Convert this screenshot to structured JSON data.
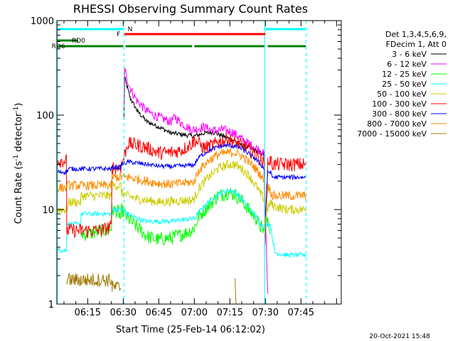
{
  "chart_data": {
    "type": "line",
    "title": "RHESSI Observing Summary Count Rates",
    "xlabel": "Start Time (25-Feb-14 06:12:02)",
    "ylabel_main": "Count Rate (s",
    "ylabel_sup1": "-1",
    "ylabel_mid": " detector",
    "ylabel_sup2": "-1",
    "ylabel_end": ")",
    "y_log": true,
    "ylim": [
      1,
      1000
    ],
    "xlim_min": [
      362,
      482
    ],
    "x_ticks": [
      {
        "m": 375,
        "label": "06:15"
      },
      {
        "m": 390,
        "label": "06:30"
      },
      {
        "m": 405,
        "label": "06:45"
      },
      {
        "m": 420,
        "label": "07:00"
      },
      {
        "m": 435,
        "label": "07:15"
      },
      {
        "m": 450,
        "label": "07:30"
      },
      {
        "m": 465,
        "label": "07:45"
      }
    ],
    "y_ticks": [
      {
        "v": 1,
        "label": "1"
      },
      {
        "v": 10,
        "label": "10"
      },
      {
        "v": 100,
        "label": "100"
      },
      {
        "v": 1000,
        "label": "1000"
      }
    ],
    "legend": {
      "header": [
        "Det 1,3,4,5,6,9,",
        "FDecim 1, Att 0"
      ],
      "placement": "right"
    },
    "series": [
      {
        "name": "3 - 6 keV",
        "color": "#000000",
        "points": [
          [
            362,
            null
          ],
          [
            390,
            null
          ],
          [
            390.3,
            90
          ],
          [
            390.6,
            250
          ],
          [
            393,
            150
          ],
          [
            396,
            110
          ],
          [
            400,
            85
          ],
          [
            405,
            75
          ],
          [
            410,
            65
          ],
          [
            415,
            62
          ],
          [
            420,
            60
          ],
          [
            424,
            64
          ],
          [
            428,
            66
          ],
          [
            432,
            60
          ],
          [
            436,
            55
          ],
          [
            440,
            48
          ],
          [
            444,
            44
          ],
          [
            448,
            40
          ],
          [
            449.5,
            38
          ],
          [
            449.8,
            5
          ]
        ]
      },
      {
        "name": "6 - 12 keV",
        "color": "#ff00ff",
        "points": [
          [
            362,
            null
          ],
          [
            390,
            null
          ],
          [
            390.3,
            120
          ],
          [
            390.6,
            300
          ],
          [
            393,
            190
          ],
          [
            396,
            140
          ],
          [
            400,
            110
          ],
          [
            405,
            95
          ],
          [
            410,
            85
          ],
          [
            412,
            95
          ],
          [
            414,
            84
          ],
          [
            418,
            72
          ],
          [
            420,
            70
          ],
          [
            424,
            75
          ],
          [
            428,
            68
          ],
          [
            432,
            70
          ],
          [
            436,
            66
          ],
          [
            440,
            56
          ],
          [
            444,
            48
          ],
          [
            448,
            42
          ],
          [
            449.5,
            38
          ],
          [
            449.8,
            12
          ],
          [
            451,
            1.2
          ]
        ]
      },
      {
        "name": "12 - 25 keV",
        "color": "#00ff00",
        "points": [
          [
            362,
            null
          ],
          [
            372,
            null
          ],
          [
            372.2,
            5.5
          ],
          [
            375,
            5.5
          ],
          [
            381,
            6
          ],
          [
            384,
            6
          ],
          [
            385,
            6.5
          ],
          [
            385.3,
            10
          ],
          [
            388,
            9.5
          ],
          [
            389,
            8
          ],
          [
            389.3,
            10
          ],
          [
            392,
            8
          ],
          [
            396,
            6.5
          ],
          [
            400,
            5.2
          ],
          [
            405,
            4.8
          ],
          [
            410,
            5
          ],
          [
            415,
            5.5
          ],
          [
            419,
            6
          ],
          [
            420,
            6.5
          ],
          [
            422,
            8.5
          ],
          [
            426,
            11
          ],
          [
            430,
            14
          ],
          [
            434,
            15
          ],
          [
            437,
            14.5
          ],
          [
            440,
            12.5
          ],
          [
            443,
            10
          ],
          [
            446,
            8
          ],
          [
            448,
            6.5
          ],
          [
            449.5,
            6
          ],
          [
            450,
            8
          ],
          [
            452,
            6.5
          ]
        ]
      },
      {
        "name": "25 - 50 keV",
        "color": "#00ffff",
        "points": [
          [
            362,
            3.7
          ],
          [
            363.5,
            3.7
          ],
          [
            364.5,
            3.7
          ],
          [
            366,
            3.7
          ],
          [
            366.2,
            7
          ],
          [
            372,
            7
          ],
          [
            372.2,
            9
          ],
          [
            385,
            9
          ],
          [
            385.3,
            10
          ],
          [
            389,
            10
          ],
          [
            389.3,
            10
          ],
          [
            392,
            9
          ],
          [
            396,
            8
          ],
          [
            400,
            7.5
          ],
          [
            405,
            7.5
          ],
          [
            410,
            7.5
          ],
          [
            415,
            7.8
          ],
          [
            419,
            8
          ],
          [
            420,
            8
          ],
          [
            422,
            9.5
          ],
          [
            426,
            12
          ],
          [
            430,
            14.5
          ],
          [
            434,
            16
          ],
          [
            437,
            15.5
          ],
          [
            440,
            13
          ],
          [
            443,
            10.5
          ],
          [
            446,
            8.5
          ],
          [
            448,
            7
          ],
          [
            449.5,
            6.5
          ],
          [
            451,
            7
          ],
          [
            452,
            7
          ],
          [
            453,
            5
          ],
          [
            454,
            3.5
          ],
          [
            459,
            3.3
          ],
          [
            467,
            3.3
          ]
        ]
      },
      {
        "name": "50 - 100 keV",
        "color": "#cccc00",
        "points": [
          [
            362,
            10
          ],
          [
            363.5,
            10
          ],
          [
            366,
            10
          ],
          [
            367,
            12
          ],
          [
            372,
            12
          ],
          [
            372.2,
            14
          ],
          [
            385,
            14
          ],
          [
            385.3,
            18
          ],
          [
            389,
            18
          ],
          [
            389.3,
            15
          ],
          [
            392,
            14
          ],
          [
            396,
            13
          ],
          [
            400,
            12.5
          ],
          [
            405,
            12
          ],
          [
            410,
            12.2
          ],
          [
            415,
            12.5
          ],
          [
            419,
            12.5
          ],
          [
            420,
            13
          ],
          [
            422,
            17
          ],
          [
            426,
            22
          ],
          [
            430,
            27
          ],
          [
            434,
            30
          ],
          [
            437,
            30
          ],
          [
            440,
            27
          ],
          [
            443,
            23
          ],
          [
            446,
            18
          ],
          [
            448,
            14.5
          ],
          [
            449.5,
            13
          ],
          [
            451,
            10
          ],
          [
            452,
            12
          ],
          [
            453,
            11
          ],
          [
            459,
            10
          ],
          [
            467,
            10
          ]
        ]
      },
      {
        "name": "100 - 300 keV",
        "color": "#ff0000",
        "points": [
          [
            362,
            33
          ],
          [
            363.5,
            33
          ],
          [
            366,
            33
          ],
          [
            366.2,
            6
          ],
          [
            372,
            6
          ],
          [
            372.2,
            6
          ],
          [
            381,
            6
          ],
          [
            384,
            6.5
          ],
          [
            385,
            6.5
          ],
          [
            385.3,
            28
          ],
          [
            389,
            28
          ],
          [
            389.3,
            30
          ],
          [
            392,
            50
          ],
          [
            396,
            48
          ],
          [
            400,
            45
          ],
          [
            405,
            40
          ],
          [
            410,
            40
          ],
          [
            415,
            43
          ],
          [
            419,
            50
          ],
          [
            420,
            55
          ],
          [
            424,
            45
          ],
          [
            428,
            48
          ],
          [
            430,
            52
          ],
          [
            434,
            55
          ],
          [
            437,
            52
          ],
          [
            440,
            48
          ],
          [
            443,
            43
          ],
          [
            446,
            38
          ],
          [
            448,
            34
          ],
          [
            449.5,
            30
          ],
          [
            449.8,
            5
          ],
          [
            451,
            33
          ],
          [
            452,
            33
          ],
          [
            453,
            30
          ],
          [
            459,
            30
          ],
          [
            467,
            30
          ]
        ]
      },
      {
        "name": "300 - 800 keV",
        "color": "#0000ff",
        "points": [
          [
            362,
            25
          ],
          [
            363.5,
            25
          ],
          [
            366,
            25
          ],
          [
            367,
            27
          ],
          [
            372,
            27
          ],
          [
            385,
            27
          ],
          [
            385.3,
            28
          ],
          [
            389,
            28
          ],
          [
            389.3,
            30
          ],
          [
            392,
            32
          ],
          [
            396,
            31
          ],
          [
            400,
            30
          ],
          [
            405,
            29
          ],
          [
            410,
            28.5
          ],
          [
            415,
            29
          ],
          [
            419,
            29.5
          ],
          [
            420,
            30
          ],
          [
            422,
            36
          ],
          [
            426,
            42
          ],
          [
            430,
            46
          ],
          [
            434,
            48
          ],
          [
            437,
            47
          ],
          [
            440,
            44
          ],
          [
            443,
            39
          ],
          [
            446,
            34
          ],
          [
            448,
            30
          ],
          [
            449.5,
            27
          ],
          [
            449.8,
            7
          ],
          [
            451,
            25
          ],
          [
            452,
            25
          ],
          [
            453,
            22
          ],
          [
            459,
            22
          ],
          [
            467,
            22
          ]
        ]
      },
      {
        "name": "800 - 7000 keV",
        "color": "#ff8c00",
        "points": [
          [
            362,
            17
          ],
          [
            363.5,
            17
          ],
          [
            366,
            17
          ],
          [
            366.2,
            18
          ],
          [
            372,
            18
          ],
          [
            385,
            18
          ],
          [
            385.3,
            22
          ],
          [
            389,
            22
          ],
          [
            389.3,
            22
          ],
          [
            392,
            22
          ],
          [
            396,
            21
          ],
          [
            400,
            20
          ],
          [
            405,
            19
          ],
          [
            410,
            18.5
          ],
          [
            415,
            19
          ],
          [
            419,
            19.5
          ],
          [
            420,
            20
          ],
          [
            422,
            26
          ],
          [
            426,
            33
          ],
          [
            430,
            38
          ],
          [
            434,
            40
          ],
          [
            437,
            40
          ],
          [
            440,
            37
          ],
          [
            443,
            32
          ],
          [
            446,
            27
          ],
          [
            448,
            23
          ],
          [
            449.5,
            20
          ],
          [
            449.8,
            6
          ],
          [
            451,
            18
          ],
          [
            452,
            16
          ],
          [
            453,
            14
          ],
          [
            459,
            14
          ],
          [
            467,
            14
          ]
        ]
      },
      {
        "name": "7000 - 15000 keV",
        "color": "#a07800",
        "points": [
          [
            362,
            null
          ],
          [
            366,
            null
          ],
          [
            366.2,
            1.8
          ],
          [
            372,
            1.8
          ],
          [
            372.2,
            1.8
          ],
          [
            385,
            1.8
          ],
          [
            385.3,
            1.5
          ],
          [
            389,
            1.5
          ],
          [
            389.3,
            null
          ],
          [
            437,
            null
          ],
          [
            437.2,
            1.9
          ],
          [
            437.6,
            1
          ]
        ]
      }
    ],
    "state_bars": [
      {
        "label": "N",
        "color": "#00ffff",
        "segments": [
          [
            362,
            390
          ],
          [
            450,
            467
          ]
        ],
        "y": 1
      },
      {
        "label": "F",
        "color": "#ff0000",
        "segments": [
          [
            390.5,
            450
          ]
        ],
        "y": 2
      },
      {
        "label": "RD0",
        "color": "#008000",
        "segments": [
          [
            362,
            371
          ]
        ],
        "y": 3
      },
      {
        "label": "RD6",
        "color": "#008000",
        "segments": [
          [
            362,
            390
          ],
          [
            391,
            419
          ],
          [
            420,
            449.5
          ],
          [
            451,
            467
          ]
        ],
        "y": 4
      }
    ],
    "vlines": [
      {
        "m": 390.3,
        "style": "dashed"
      },
      {
        "m": 449.7,
        "style": "solid"
      },
      {
        "m": 467.2,
        "style": "dashed"
      },
      {
        "m": 362.2,
        "style": "solid"
      }
    ]
  },
  "footer_date": "20-Oct-2021 15:48"
}
